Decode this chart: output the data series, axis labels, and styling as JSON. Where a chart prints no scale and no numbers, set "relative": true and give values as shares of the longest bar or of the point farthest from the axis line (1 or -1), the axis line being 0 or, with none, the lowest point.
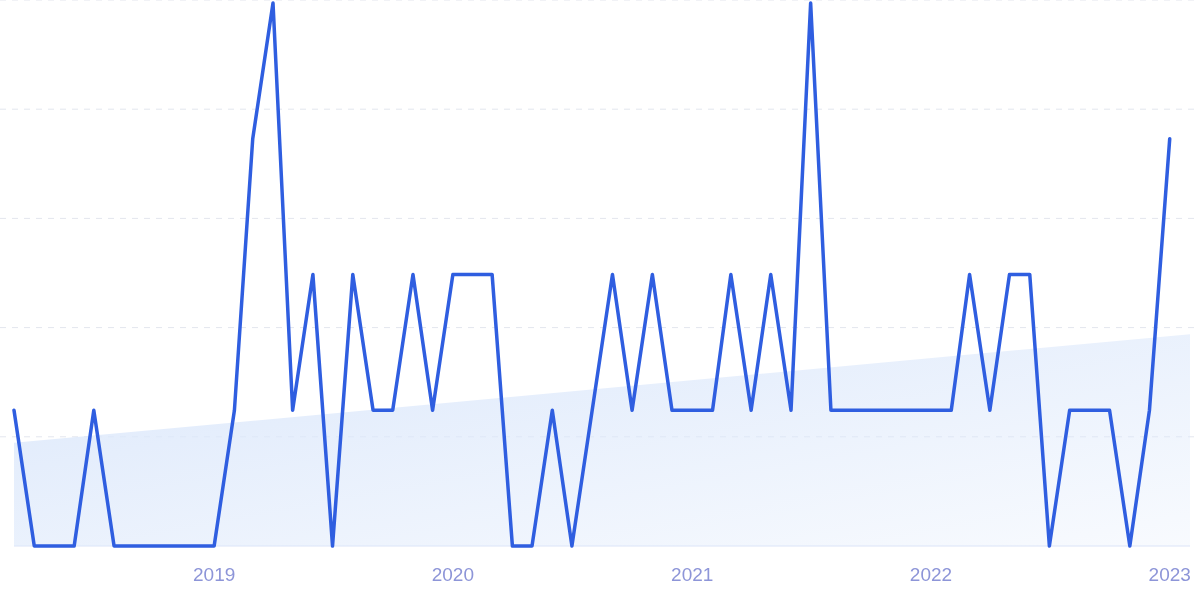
{
  "chart_data": {
    "type": "line",
    "relative": true,
    "grid": "y",
    "xlim": [
      "2018-03",
      "2023-02"
    ],
    "xticks": [
      "2019",
      "2020",
      "2021",
      "2022",
      "2023"
    ],
    "series": [
      {
        "type": "area",
        "color": "#dce8fb",
        "x": [
          "2018-03",
          "2023-02"
        ],
        "values": [
          0.19,
          0.39
        ]
      },
      {
        "color": "#2f5ee0",
        "x": [
          "2018-03",
          "2018-04",
          "2018-05",
          "2018-06",
          "2018-07",
          "2018-08",
          "2018-09",
          "2018-10",
          "2018-11",
          "2018-12",
          "2019-01",
          "2019-02",
          "2019-03",
          "2019-04",
          "2019-05",
          "2019-06",
          "2019-07",
          "2019-08",
          "2019-09",
          "2019-10",
          "2019-11",
          "2019-12",
          "2020-01",
          "2020-02",
          "2020-03",
          "2020-04",
          "2020-05",
          "2020-06",
          "2020-07",
          "2020-08",
          "2020-09",
          "2020-10",
          "2020-11",
          "2020-12",
          "2021-01",
          "2021-02",
          "2021-03",
          "2021-04",
          "2021-05",
          "2021-06",
          "2021-07",
          "2021-08",
          "2021-09",
          "2021-10",
          "2021-11",
          "2021-12",
          "2022-01",
          "2022-02",
          "2022-03",
          "2022-04",
          "2022-05",
          "2022-06",
          "2022-07",
          "2022-08",
          "2022-09",
          "2022-10",
          "2022-11",
          "2022-12",
          "2023-01"
        ],
        "values": [
          0.25,
          0,
          0,
          0,
          0.25,
          0,
          0,
          0,
          0,
          0,
          0,
          0.25,
          0.75,
          1,
          0.25,
          0.5,
          0,
          0.5,
          0.25,
          0.25,
          0.5,
          0.25,
          0.5,
          0.5,
          0.5,
          0,
          0,
          0.25,
          0,
          0.25,
          0.5,
          0.25,
          0.5,
          0.25,
          0.25,
          0.25,
          0.5,
          0.25,
          0.5,
          0.25,
          1,
          0.25,
          0.25,
          0.25,
          0.25,
          0.25,
          0.25,
          0.25,
          0.5,
          0.25,
          0.5,
          0.5,
          0,
          0.25,
          0.25,
          0.25,
          0,
          0.25,
          0.75
        ]
      }
    ]
  }
}
